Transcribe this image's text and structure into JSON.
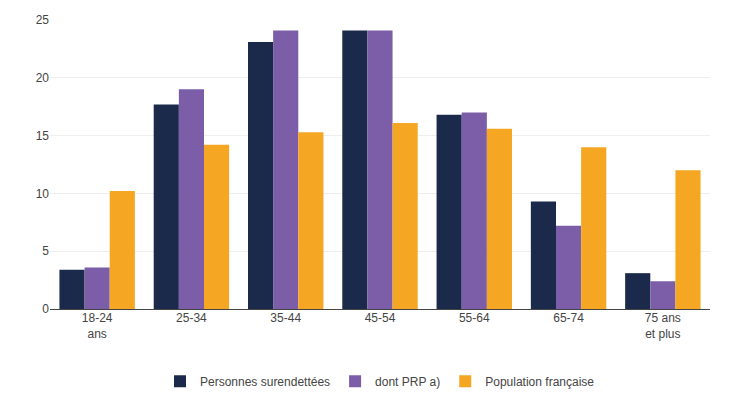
{
  "chart_data": {
    "type": "bar",
    "categories": [
      "18-24\nans",
      "25-34",
      "35-44",
      "45-54",
      "55-64",
      "65-74",
      "75 ans\net plus"
    ],
    "series": [
      {
        "name": "Personnes surendettées",
        "color": "#1b2a4a",
        "values": [
          3.4,
          17.7,
          23.1,
          24.1,
          16.8,
          9.3,
          3.1
        ]
      },
      {
        "name": "dont PRP a)",
        "color": "#7b5ea7",
        "values": [
          3.6,
          19.0,
          24.1,
          24.1,
          17.0,
          7.2,
          2.4
        ]
      },
      {
        "name": "Population française",
        "color": "#f5a623",
        "values": [
          10.2,
          14.2,
          15.3,
          16.1,
          15.6,
          14.0,
          12.0
        ]
      }
    ],
    "ylim": [
      0,
      25
    ],
    "yticks": [
      0,
      5,
      10,
      15,
      20,
      25
    ],
    "grid": true,
    "legend": "bottom"
  }
}
